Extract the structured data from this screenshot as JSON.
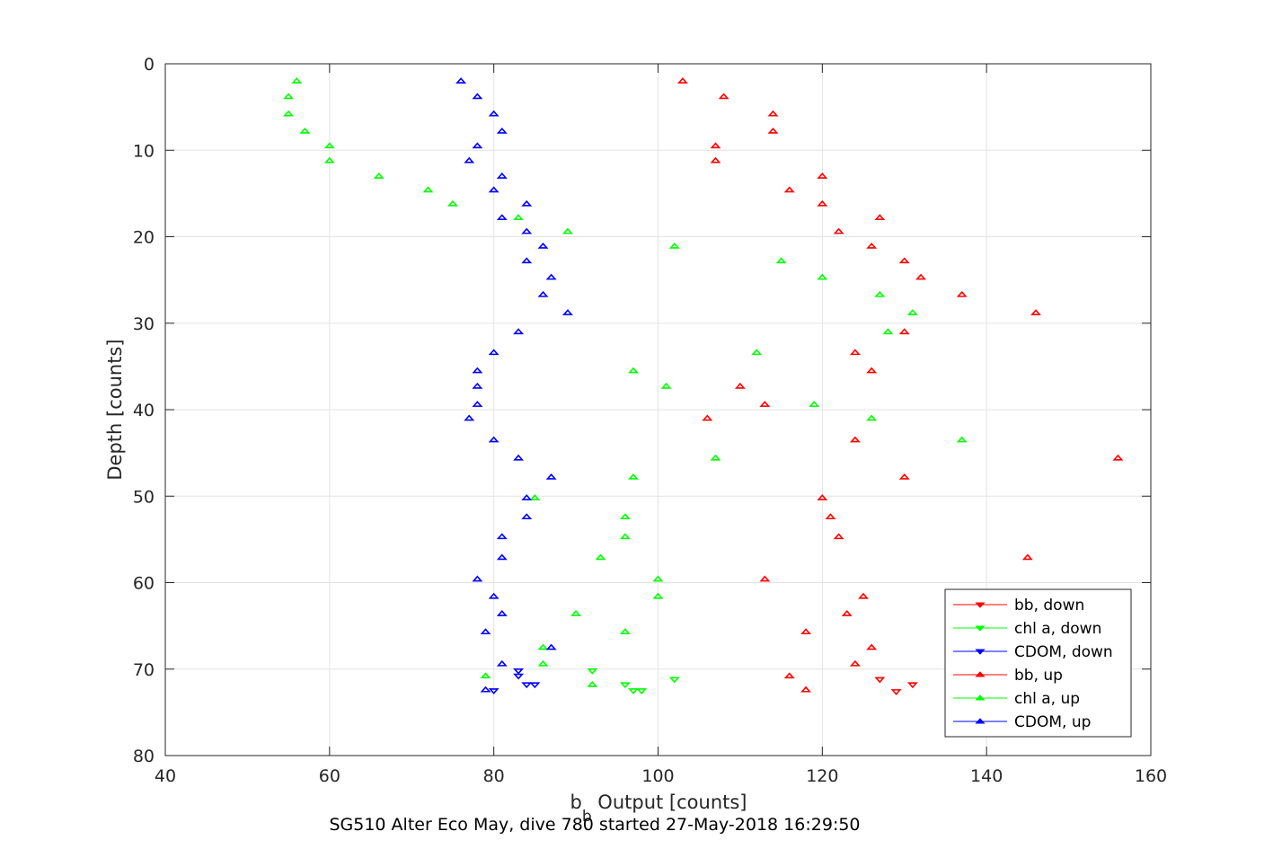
{
  "chart_data": {
    "type": "scatter",
    "xlabel": {
      "base": "b",
      "sub": "b",
      "rest": " Output [counts]"
    },
    "ylabel": "Depth [counts]",
    "caption": "SG510 Alter Eco May, dive 780 started 27-May-2018 16:29:50",
    "xlim": [
      40,
      160
    ],
    "ylim": [
      0,
      80
    ],
    "y_reversed": true,
    "xticks": [
      40,
      60,
      80,
      100,
      120,
      140,
      160
    ],
    "yticks": [
      0,
      10,
      20,
      30,
      40,
      50,
      60,
      70,
      80
    ],
    "grid": true,
    "legend_position": "bottom-right",
    "series": [
      {
        "name": "bb, down",
        "color": "#ff0000",
        "marker": "triangle-down",
        "points": [
          [
            127,
            71.2
          ],
          [
            129,
            72.6
          ],
          [
            131,
            71.8
          ]
        ]
      },
      {
        "name": "chl a, down",
        "color": "#00ff00",
        "marker": "triangle-down",
        "points": [
          [
            92,
            70.2
          ],
          [
            96,
            71.8
          ],
          [
            97,
            72.5
          ],
          [
            98,
            72.5
          ],
          [
            102,
            71.2
          ]
        ]
      },
      {
        "name": "CDOM, down",
        "color": "#0000ff",
        "marker": "triangle-down",
        "points": [
          [
            83,
            70.2
          ],
          [
            83,
            70.8
          ],
          [
            84,
            71.8
          ],
          [
            85,
            71.8
          ],
          [
            80,
            72.5
          ]
        ]
      },
      {
        "name": "bb, up",
        "color": "#ff0000",
        "marker": "triangle-up",
        "points": [
          [
            103,
            2
          ],
          [
            108,
            3.8
          ],
          [
            114,
            5.8
          ],
          [
            114,
            7.8
          ],
          [
            107,
            9.5
          ],
          [
            107,
            11.2
          ],
          [
            120,
            13
          ],
          [
            116,
            14.6
          ],
          [
            120,
            16.2
          ],
          [
            127,
            17.8
          ],
          [
            122,
            19.4
          ],
          [
            126,
            21.1
          ],
          [
            130,
            22.8
          ],
          [
            132,
            24.7
          ],
          [
            137,
            26.7
          ],
          [
            146,
            28.8
          ],
          [
            130,
            31
          ],
          [
            124,
            33.4
          ],
          [
            126,
            35.5
          ],
          [
            110,
            37.3
          ],
          [
            113,
            39.4
          ],
          [
            106,
            41
          ],
          [
            124,
            43.5
          ],
          [
            156,
            45.6
          ],
          [
            130,
            47.8
          ],
          [
            120,
            50.2
          ],
          [
            121,
            52.4
          ],
          [
            122,
            54.7
          ],
          [
            145,
            57.1
          ],
          [
            113,
            59.6
          ],
          [
            125,
            61.6
          ],
          [
            123,
            63.6
          ],
          [
            118,
            65.7
          ],
          [
            126,
            67.5
          ],
          [
            124,
            69.4
          ],
          [
            116,
            70.8
          ],
          [
            118,
            72.4
          ]
        ]
      },
      {
        "name": "chl a, up",
        "color": "#00ff00",
        "marker": "triangle-up",
        "points": [
          [
            56,
            2
          ],
          [
            55,
            3.8
          ],
          [
            55,
            5.8
          ],
          [
            57,
            7.8
          ],
          [
            60,
            9.5
          ],
          [
            60,
            11.2
          ],
          [
            66,
            13
          ],
          [
            72,
            14.6
          ],
          [
            75,
            16.2
          ],
          [
            83,
            17.8
          ],
          [
            89,
            19.4
          ],
          [
            102,
            21.1
          ],
          [
            115,
            22.8
          ],
          [
            120,
            24.7
          ],
          [
            127,
            26.7
          ],
          [
            131,
            28.8
          ],
          [
            128,
            31
          ],
          [
            112,
            33.4
          ],
          [
            97,
            35.5
          ],
          [
            101,
            37.3
          ],
          [
            119,
            39.4
          ],
          [
            126,
            41
          ],
          [
            137,
            43.5
          ],
          [
            107,
            45.6
          ],
          [
            97,
            47.8
          ],
          [
            85,
            50.2
          ],
          [
            96,
            52.4
          ],
          [
            96,
            54.7
          ],
          [
            93,
            57.1
          ],
          [
            100,
            59.6
          ],
          [
            100,
            61.6
          ],
          [
            90,
            63.6
          ],
          [
            96,
            65.7
          ],
          [
            86,
            67.5
          ],
          [
            86,
            69.4
          ],
          [
            79,
            70.8
          ],
          [
            92,
            71.8
          ]
        ]
      },
      {
        "name": "CDOM, up",
        "color": "#0000ff",
        "marker": "triangle-up",
        "points": [
          [
            76,
            2
          ],
          [
            78,
            3.8
          ],
          [
            80,
            5.8
          ],
          [
            81,
            7.8
          ],
          [
            78,
            9.5
          ],
          [
            77,
            11.2
          ],
          [
            81,
            13
          ],
          [
            80,
            14.6
          ],
          [
            84,
            16.2
          ],
          [
            81,
            17.8
          ],
          [
            84,
            19.4
          ],
          [
            86,
            21.1
          ],
          [
            84,
            22.8
          ],
          [
            87,
            24.7
          ],
          [
            86,
            26.7
          ],
          [
            89,
            28.8
          ],
          [
            83,
            31
          ],
          [
            80,
            33.4
          ],
          [
            78,
            35.5
          ],
          [
            78,
            37.3
          ],
          [
            78,
            39.4
          ],
          [
            77,
            41
          ],
          [
            80,
            43.5
          ],
          [
            83,
            45.6
          ],
          [
            87,
            47.8
          ],
          [
            84,
            50.2
          ],
          [
            84,
            52.4
          ],
          [
            81,
            54.7
          ],
          [
            81,
            57.1
          ],
          [
            78,
            59.6
          ],
          [
            80,
            61.6
          ],
          [
            81,
            63.6
          ],
          [
            79,
            65.7
          ],
          [
            87,
            67.5
          ],
          [
            81,
            69.4
          ],
          [
            79,
            72.4
          ]
        ]
      }
    ]
  }
}
